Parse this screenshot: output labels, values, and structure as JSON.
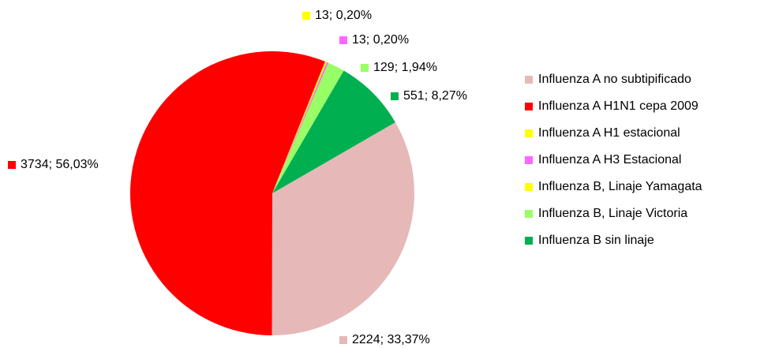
{
  "chart_data": {
    "type": "pie",
    "categories": [
      "Influenza A no subtipificado",
      "Influenza A H1N1 cepa 2009",
      "Influenza A H1 estacional",
      "Influenza A H3 Estacional",
      "Influenza B, Linaje Yamagata",
      "Influenza B, Linaje Victoria",
      "Influenza B sin linaje"
    ],
    "values": [
      2224,
      3734,
      13,
      13,
      0,
      129,
      551
    ],
    "value_labels": [
      "2224; 33,37%",
      "3734; 56,03%",
      "13; 0,20%",
      "13; 0,20%",
      null,
      "129; 1,94%",
      "551; 8,27%"
    ],
    "colors": [
      "#e6b9b8",
      "#ff0000",
      "#ffff00",
      "#ff66ff",
      "#ffff00",
      "#99ff66",
      "#00b050"
    ],
    "legend": "right"
  }
}
